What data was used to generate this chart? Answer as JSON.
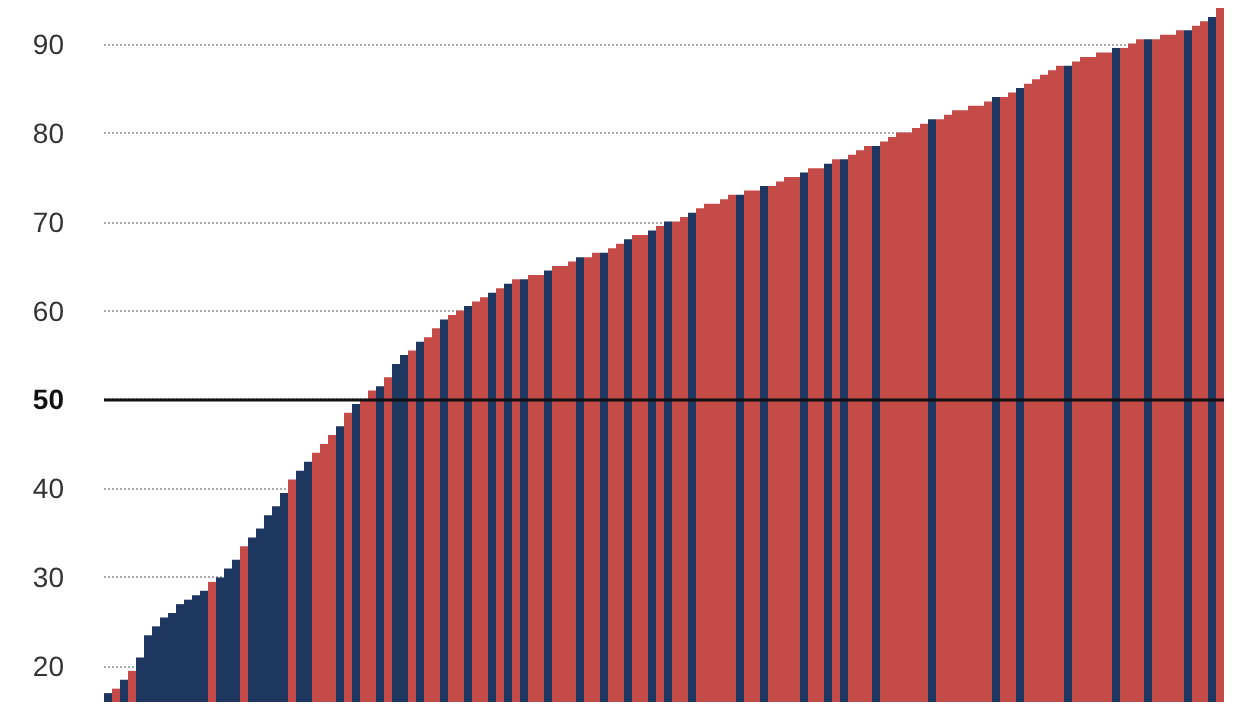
{
  "chart_data": {
    "type": "bar",
    "categories": [
      null,
      null,
      null,
      null,
      null,
      null,
      null,
      null,
      null,
      null,
      null,
      null,
      null,
      null,
      null,
      null,
      null,
      null,
      null,
      null,
      null,
      null,
      null,
      null,
      null,
      null,
      null,
      null,
      null,
      null,
      null,
      null,
      null,
      null,
      null,
      null,
      null,
      null,
      null,
      null,
      null,
      null,
      null,
      null,
      null,
      null,
      null,
      null,
      null,
      null,
      null,
      null,
      null,
      null,
      null,
      null,
      null,
      null,
      null,
      null,
      null,
      null,
      null,
      null,
      null,
      null,
      null,
      null,
      null,
      null,
      null,
      null,
      null,
      null,
      null,
      null,
      null,
      null,
      null,
      null,
      null,
      null,
      null,
      null,
      null,
      null,
      null,
      null,
      null,
      null,
      null,
      null,
      null,
      null,
      null,
      null,
      null,
      null,
      null,
      null,
      null,
      null,
      null,
      null,
      null,
      null,
      null,
      null,
      null,
      null,
      null,
      null,
      null,
      null,
      null,
      null,
      null,
      null,
      null,
      null,
      null,
      null,
      null,
      null,
      null,
      null,
      null,
      null,
      null,
      null,
      null,
      null,
      null,
      null,
      null,
      null,
      null,
      null,
      null,
      null
    ],
    "values": [
      17,
      17.5,
      18.5,
      19.5,
      21,
      23.5,
      24.5,
      25.5,
      26,
      27,
      27.5,
      28,
      28.5,
      29.5,
      30,
      31,
      32,
      33.5,
      34.5,
      35.5,
      37,
      38,
      39.5,
      41,
      42,
      43,
      44,
      45,
      46,
      47,
      48.5,
      49.5,
      50,
      51,
      51.5,
      52.5,
      54,
      55,
      55.5,
      56.5,
      57,
      58,
      59,
      59.5,
      60,
      60.5,
      61,
      61.5,
      62,
      62.5,
      63,
      63.5,
      63.5,
      64,
      64,
      64.5,
      65,
      65,
      65.5,
      66,
      66,
      66.5,
      66.5,
      67,
      67.5,
      68,
      68.5,
      68.5,
      69,
      69.5,
      70,
      70,
      70.5,
      71,
      71.5,
      72,
      72,
      72.5,
      73,
      73,
      73.5,
      73.5,
      74,
      74,
      74.5,
      75,
      75,
      75.5,
      76,
      76,
      76.5,
      77,
      77,
      77.5,
      78,
      78.5,
      78.5,
      79,
      79.5,
      80,
      80,
      80.5,
      81,
      81.5,
      81.5,
      82,
      82.5,
      82.5,
      83,
      83,
      83.5,
      84,
      84,
      84.5,
      85,
      85.5,
      86,
      86.5,
      87,
      87.5,
      87.5,
      88,
      88.5,
      88.5,
      89,
      89,
      89.5,
      89.5,
      90,
      90.5,
      90.5,
      90.5,
      91,
      91,
      91.5,
      91.5,
      92,
      92.5,
      93,
      94
    ],
    "colors": [
      "#1e3760",
      "#c44b47",
      "#1e3760",
      "#c44b47",
      "#1e3760",
      "#1e3760",
      "#1e3760",
      "#1e3760",
      "#1e3760",
      "#1e3760",
      "#1e3760",
      "#1e3760",
      "#1e3760",
      "#c44b47",
      "#1e3760",
      "#1e3760",
      "#1e3760",
      "#c44b47",
      "#1e3760",
      "#1e3760",
      "#1e3760",
      "#1e3760",
      "#1e3760",
      "#c44b47",
      "#1e3760",
      "#1e3760",
      "#c44b47",
      "#c44b47",
      "#c44b47",
      "#1e3760",
      "#c44b47",
      "#1e3760",
      "#c44b47",
      "#c44b47",
      "#1e3760",
      "#c44b47",
      "#1e3760",
      "#1e3760",
      "#c44b47",
      "#1e3760",
      "#c44b47",
      "#c44b47",
      "#1e3760",
      "#c44b47",
      "#c44b47",
      "#1e3760",
      "#c44b47",
      "#c44b47",
      "#1e3760",
      "#c44b47",
      "#1e3760",
      "#c44b47",
      "#1e3760",
      "#c44b47",
      "#c44b47",
      "#1e3760",
      "#c44b47",
      "#c44b47",
      "#c44b47",
      "#1e3760",
      "#c44b47",
      "#c44b47",
      "#1e3760",
      "#c44b47",
      "#c44b47",
      "#1e3760",
      "#c44b47",
      "#c44b47",
      "#1e3760",
      "#c44b47",
      "#1e3760",
      "#c44b47",
      "#c44b47",
      "#1e3760",
      "#c44b47",
      "#c44b47",
      "#c44b47",
      "#c44b47",
      "#c44b47",
      "#1e3760",
      "#c44b47",
      "#c44b47",
      "#1e3760",
      "#c44b47",
      "#c44b47",
      "#c44b47",
      "#c44b47",
      "#1e3760",
      "#c44b47",
      "#c44b47",
      "#1e3760",
      "#c44b47",
      "#1e3760",
      "#c44b47",
      "#c44b47",
      "#c44b47",
      "#1e3760",
      "#c44b47",
      "#c44b47",
      "#c44b47",
      "#c44b47",
      "#c44b47",
      "#c44b47",
      "#1e3760",
      "#c44b47",
      "#c44b47",
      "#c44b47",
      "#c44b47",
      "#c44b47",
      "#c44b47",
      "#c44b47",
      "#1e3760",
      "#c44b47",
      "#c44b47",
      "#1e3760",
      "#c44b47",
      "#c44b47",
      "#c44b47",
      "#c44b47",
      "#c44b47",
      "#1e3760",
      "#c44b47",
      "#c44b47",
      "#c44b47",
      "#c44b47",
      "#c44b47",
      "#1e3760",
      "#c44b47",
      "#c44b47",
      "#c44b47",
      "#1e3760",
      "#c44b47",
      "#c44b47",
      "#c44b47",
      "#c44b47",
      "#1e3760",
      "#c44b47",
      "#c44b47",
      "#1e3760",
      "#c44b47"
    ],
    "ylim": [
      16,
      94
    ],
    "yticks": [
      20,
      30,
      40,
      50,
      60,
      70,
      80,
      90
    ],
    "grid": "y",
    "tick_labels": "y",
    "ref_lines": [
      {
        "axis": "y",
        "value": 50,
        "color": "#111111"
      }
    ]
  }
}
